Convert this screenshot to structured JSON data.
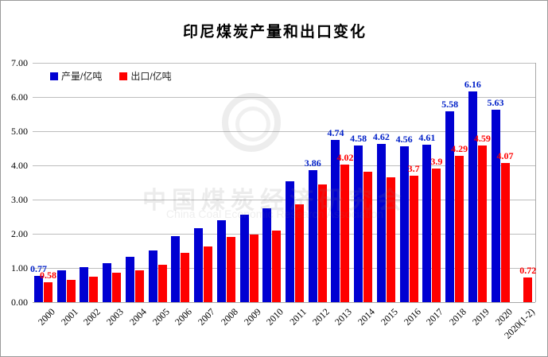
{
  "chart_data": {
    "type": "bar",
    "title": "印尼煤炭产量和出口变化",
    "xlabel": "",
    "ylabel": "",
    "ylim": [
      0,
      7
    ],
    "yticks": [
      "0.00",
      "1.00",
      "2.00",
      "3.00",
      "4.00",
      "5.00",
      "6.00",
      "7.00"
    ],
    "grid": true,
    "legend_position": "top-left-inside",
    "categories": [
      "2000",
      "2001",
      "2002",
      "2003",
      "2004",
      "2005",
      "2006",
      "2007",
      "2008",
      "2009",
      "2010",
      "2011",
      "2012",
      "2013",
      "2014",
      "2015",
      "2016",
      "2017",
      "2018",
      "2019",
      "2020",
      "2020(1-2)"
    ],
    "series": [
      {
        "name": "产量/亿吨",
        "color": "#0000d2",
        "label_color": "#0020c8",
        "values": [
          0.77,
          0.92,
          1.03,
          1.14,
          1.32,
          1.52,
          1.93,
          2.16,
          2.4,
          2.56,
          2.75,
          3.53,
          3.86,
          4.74,
          4.58,
          4.62,
          4.56,
          4.61,
          5.58,
          6.16,
          5.63,
          null
        ],
        "labels": [
          "0.77",
          "",
          "",
          "",
          "",
          "",
          "",
          "",
          "",
          "",
          "",
          "",
          "3.86",
          "4.74",
          "4.58",
          "4.62",
          "4.56",
          "4.61",
          "5.58",
          "6.16",
          "5.63",
          ""
        ]
      },
      {
        "name": "出口/亿吨",
        "color": "#fe0000",
        "label_color": "#fe0000",
        "values": [
          0.58,
          0.66,
          0.74,
          0.86,
          0.94,
          1.1,
          1.44,
          1.63,
          1.91,
          1.98,
          2.1,
          2.87,
          3.45,
          4.02,
          3.82,
          3.66,
          3.7,
          3.9,
          4.29,
          4.59,
          4.07,
          0.72
        ],
        "labels": [
          "0.58",
          "",
          "",
          "",
          "",
          "",
          "",
          "",
          "",
          "",
          "",
          "",
          "",
          "4.02",
          "",
          "",
          "3.7",
          "3.9",
          "4.29",
          "4.59",
          "4.07",
          "0.72"
        ]
      }
    ],
    "watermark": {
      "line1": "中国煤炭经济研究会",
      "line2": "China Coal Economic Research Association"
    }
  },
  "layout_values": {
    "note": "static chart image, no interactive controls visible"
  }
}
